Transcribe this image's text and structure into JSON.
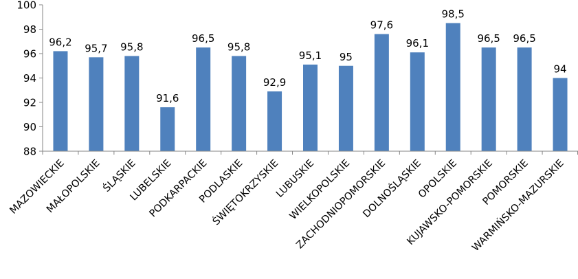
{
  "chart_data": {
    "type": "bar",
    "title": "",
    "xlabel": "",
    "ylabel": "",
    "categories": [
      "MAZOWIECKIE",
      "MAŁOPOLSKIE",
      "ŚLĄSKIE",
      "LUBELSKIE",
      "PODKARPACKIE",
      "PODLASKIE",
      "ŚWIĘTOKRZYSKIE",
      "LUBUSKIE",
      "WIELKOPOLSKIE",
      "ZACHODNIOPOMORSKIE",
      "DOLNOŚLĄSKIE",
      "OPOLSKIE",
      "KUJAWSKO-POMORSKIE",
      "POMORSKIE",
      "WARMIŃSKO-MAZURSKIE"
    ],
    "values": [
      96.2,
      95.7,
      95.8,
      91.6,
      96.5,
      95.8,
      92.9,
      95.1,
      95,
      97.6,
      96.1,
      98.5,
      96.5,
      96.5,
      94
    ],
    "data_labels": [
      "96,2",
      "95,7",
      "95,8",
      "91,6",
      "96,5",
      "95,8",
      "92,9",
      "95,1",
      "95",
      "97,6",
      "96,1",
      "98,5",
      "96,5",
      "96,5",
      "94"
    ],
    "ylim": [
      88,
      100
    ],
    "y_ticks": [
      "88",
      "90",
      "92",
      "94",
      "96",
      "98",
      "100"
    ],
    "grid": false,
    "legend": "none",
    "bar_color": "#4f81bd",
    "axis_color": "#868686"
  }
}
